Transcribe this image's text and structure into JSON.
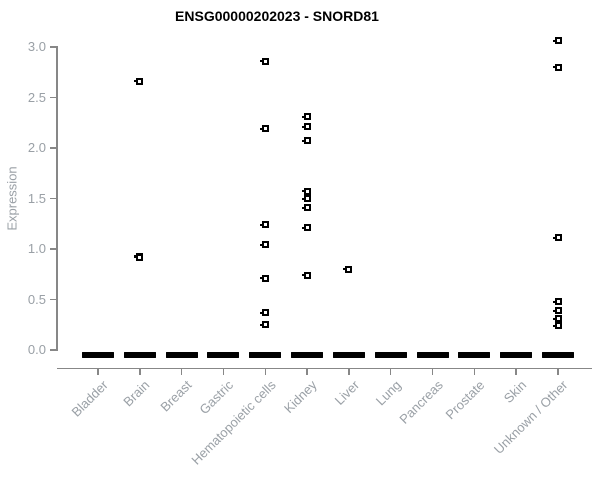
{
  "figure": {
    "title": "ENSG00000202023 - SNORD81",
    "y_axis_label": "Expression"
  },
  "chart_data": {
    "type": "scatter",
    "title": "ENSG00000202023 - SNORD81",
    "xlabel": "",
    "ylabel": "Expression",
    "ylim": [
      0,
      3.0
    ],
    "yticks": [
      0.0,
      0.5,
      1.0,
      1.5,
      2.0,
      2.5,
      3.0
    ],
    "ytick_labels": [
      "0.0",
      "0.5",
      "1.0",
      "1.5",
      "2.0",
      "2.5",
      "3.0"
    ],
    "grid": false,
    "legend": false,
    "marker": "open-square",
    "point_color": "#000000",
    "axis_color": "#878787",
    "tick_label_color": "#9aa0a6",
    "title_color": "#000000",
    "categories": [
      "Bladder",
      "Brain",
      "Breast",
      "Gastric",
      "Hematopoietic cells",
      "Kidney",
      "Liver",
      "Lung",
      "Pancreas",
      "Prostate",
      "Skin",
      "Unknown / Other"
    ],
    "series": [
      {
        "category": "Bladder",
        "values": [],
        "zero_cluster": true
      },
      {
        "category": "Brain",
        "values": [
          2.66,
          0.93,
          0.92
        ],
        "zero_cluster": true
      },
      {
        "category": "Breast",
        "values": [],
        "zero_cluster": true
      },
      {
        "category": "Gastric",
        "values": [],
        "zero_cluster": true
      },
      {
        "category": "Hematopoietic cells",
        "values": [
          2.86,
          2.19,
          1.24,
          1.04,
          0.71,
          0.37,
          0.25
        ],
        "zero_cluster": true
      },
      {
        "category": "Kidney",
        "values": [
          2.31,
          2.21,
          2.07,
          1.57,
          1.5,
          1.41,
          1.21,
          0.74
        ],
        "zero_cluster": true
      },
      {
        "category": "Liver",
        "values": [
          0.8
        ],
        "zero_cluster": true
      },
      {
        "category": "Lung",
        "values": [],
        "zero_cluster": true
      },
      {
        "category": "Pancreas",
        "values": [],
        "zero_cluster": true
      },
      {
        "category": "Prostate",
        "values": [],
        "zero_cluster": true
      },
      {
        "category": "Skin",
        "values": [],
        "zero_cluster": true
      },
      {
        "category": "Unknown / Other",
        "values": [
          3.06,
          2.8,
          1.11,
          0.48,
          0.39,
          0.31,
          0.24
        ],
        "zero_cluster": true
      }
    ]
  }
}
